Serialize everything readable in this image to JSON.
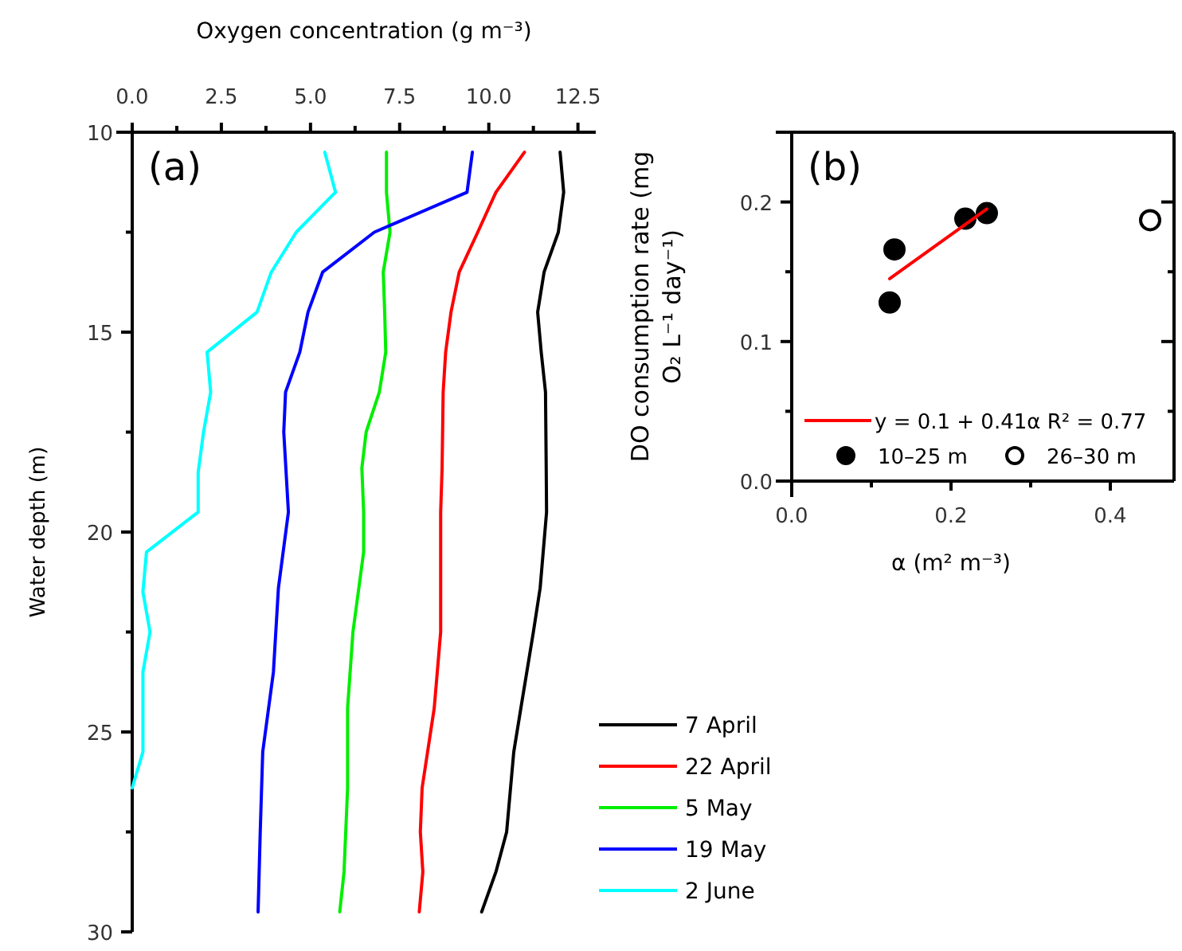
{
  "chart_data": [
    {
      "type": "line",
      "xlabel": "Oxygen concentration (g m⁻³)",
      "ylabel": "Water depth (m)",
      "annotations": [
        "(a)"
      ],
      "xlim": [
        0,
        13
      ],
      "xticks": [
        {
          "value": 0,
          "label": "0.0"
        },
        {
          "value": 1.25,
          "label": null
        },
        {
          "value": 2.5,
          "label": "2.5"
        },
        {
          "value": 3.75,
          "label": null
        },
        {
          "value": 5,
          "label": "5.0"
        },
        {
          "value": 6.25,
          "label": null
        },
        {
          "value": 7.5,
          "label": "7.5"
        },
        {
          "value": 8.75,
          "label": null
        },
        {
          "value": 10,
          "label": "10.0"
        },
        {
          "value": 11.25,
          "label": null
        },
        {
          "value": 12.5,
          "label": "12.5"
        }
      ],
      "ylim": [
        30,
        10
      ],
      "yticks": [
        10,
        {
          "value": 12.5,
          "label": null
        },
        15,
        {
          "value": 17.5,
          "label": null
        },
        20,
        {
          "value": 22.5,
          "label": null
        },
        25,
        {
          "value": 27.5,
          "label": null
        },
        30
      ],
      "legend": "bottom right",
      "grid": false,
      "line_style": "solid",
      "series": [
        {
          "name": "7 April",
          "color": "#000000",
          "x": [
            12.0,
            12.1,
            11.95,
            11.55,
            11.37,
            11.47,
            11.59,
            11.61,
            11.62,
            11.44,
            11.25,
            10.9,
            10.7,
            10.5,
            10.2,
            9.8
          ],
          "values": [
            10.5,
            11.5,
            12.5,
            13.5,
            14.5,
            15.5,
            16.5,
            18.4,
            19.5,
            21.4,
            22.5,
            24.4,
            25.5,
            27.5,
            28.5,
            29.5
          ]
        },
        {
          "name": "22 April",
          "color": "#ff0000",
          "x": [
            11.0,
            10.2,
            9.69,
            9.17,
            8.94,
            8.79,
            8.72,
            8.69,
            8.65,
            8.65,
            8.47,
            8.13,
            8.08,
            8.15,
            8.05
          ],
          "values": [
            10.5,
            11.5,
            12.5,
            13.5,
            14.5,
            15.5,
            16.5,
            18.4,
            19.5,
            22.5,
            24.4,
            26.4,
            27.5,
            28.5,
            29.5
          ]
        },
        {
          "name": "5 May",
          "color": "#00ee00",
          "x": [
            7.13,
            7.13,
            7.23,
            7.04,
            7.08,
            7.11,
            6.93,
            6.56,
            6.44,
            6.49,
            6.49,
            6.19,
            6.04,
            6.04,
            5.94,
            5.82
          ],
          "values": [
            10.5,
            11.5,
            12.5,
            13.5,
            14.5,
            15.5,
            16.5,
            17.5,
            18.4,
            19.5,
            20.5,
            22.5,
            24.4,
            26.4,
            28.5,
            29.5
          ]
        },
        {
          "name": "19 May",
          "color": "#0000ff",
          "x": [
            9.54,
            9.39,
            6.79,
            5.34,
            4.93,
            4.7,
            4.3,
            4.25,
            4.38,
            4.1,
            3.96,
            3.66,
            3.59,
            3.56,
            3.53
          ],
          "values": [
            10.5,
            11.5,
            12.5,
            13.5,
            14.5,
            15.5,
            16.5,
            17.5,
            19.5,
            21.4,
            23.5,
            25.5,
            27.5,
            28.5,
            29.5
          ]
        },
        {
          "name": "2 June",
          "color": "#00ffff",
          "x": [
            5.4,
            5.7,
            4.6,
            3.9,
            3.5,
            2.1,
            2.2,
            2.0,
            1.85,
            1.85,
            0.4,
            0.3,
            0.5,
            0.3,
            0.3,
            0.3,
            0.0
          ],
          "values": [
            10.5,
            11.5,
            12.5,
            13.5,
            14.5,
            15.5,
            16.5,
            17.5,
            18.5,
            19.5,
            20.5,
            21.5,
            22.5,
            23.5,
            24.5,
            25.5,
            26.4
          ]
        }
      ]
    },
    {
      "type": "scatter",
      "xlabel": "α  (m² m⁻³)",
      "ylabel": "DO consumption rate (mg O₂ L⁻¹ day⁻¹)",
      "annotations": [
        "(b)"
      ],
      "xlim": [
        0,
        0.48
      ],
      "xticks": [
        {
          "value": 0,
          "label": "0.0"
        },
        {
          "value": 0.1,
          "label": null
        },
        0.2,
        {
          "value": 0.3,
          "label": null
        },
        0.4
      ],
      "ylim": [
        0,
        0.25
      ],
      "yticks": [
        {
          "value": 0,
          "label": "0.0"
        },
        {
          "value": 0.05,
          "label": null
        },
        0.1,
        {
          "value": 0.15,
          "label": null
        },
        0.2
      ],
      "legend": "bottom left",
      "grid": false,
      "marker": "circle",
      "series": [
        {
          "name": "y = 0.1 + 0.41α  R² = 0.77",
          "type": "line",
          "marker": "none",
          "color": "#ff0000",
          "x": [
            0.123,
            0.245
          ],
          "values": [
            0.145,
            0.195
          ]
        },
        {
          "name": "10–25 m",
          "color": "#000000",
          "x": [
            0.123,
            0.129,
            0.218,
            0.245
          ],
          "values": [
            0.128,
            0.166,
            0.188,
            0.192
          ]
        },
        {
          "name": "26–30 m",
          "color": "#ffffff",
          "x": [
            0.45
          ],
          "values": [
            0.187
          ]
        }
      ]
    }
  ]
}
